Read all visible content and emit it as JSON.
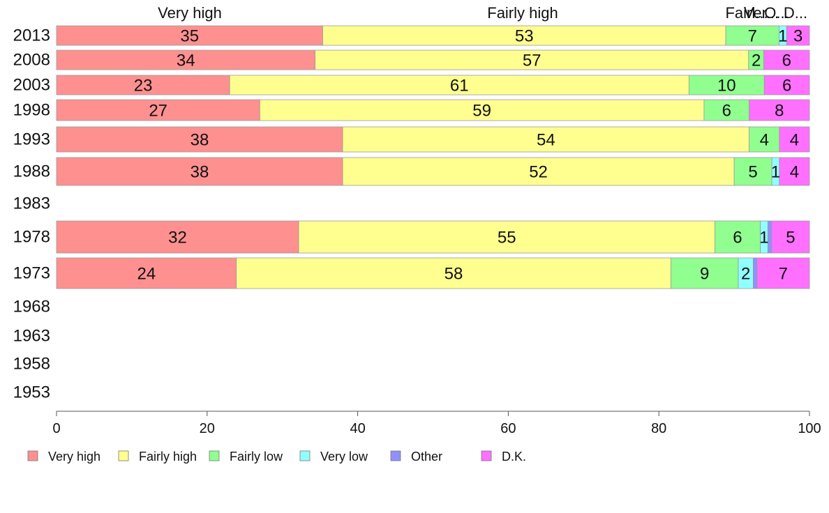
{
  "chart_data": {
    "type": "bar",
    "orientation": "horizontal",
    "stacked": true,
    "categories": [
      "2013",
      "2008",
      "2003",
      "1998",
      "1993",
      "1988",
      "1983",
      "1978",
      "1973",
      "1968",
      "1963",
      "1958",
      "1953"
    ],
    "series": [
      {
        "name": "Very high",
        "color": "#ff9090",
        "values": [
          35,
          34,
          23,
          27,
          38,
          38,
          null,
          32,
          24,
          null,
          null,
          null,
          null
        ]
      },
      {
        "name": "Fairly high",
        "color": "#ffff90",
        "values": [
          53,
          57,
          61,
          59,
          54,
          52,
          null,
          55,
          58,
          null,
          null,
          null,
          null
        ]
      },
      {
        "name": "Fairly low",
        "color": "#90ff90",
        "values": [
          7,
          2,
          10,
          6,
          4,
          5,
          null,
          6,
          9,
          null,
          null,
          null,
          null
        ]
      },
      {
        "name": "Very low",
        "color": "#90ffff",
        "values": [
          1,
          0,
          0,
          0,
          0,
          1,
          null,
          1,
          2,
          null,
          null,
          null,
          null
        ]
      },
      {
        "name": "Other",
        "color": "#9090ff",
        "values": [
          0,
          0,
          0,
          0,
          0,
          0,
          null,
          0.5,
          0.5,
          null,
          null,
          null,
          null
        ]
      },
      {
        "name": "D.K.",
        "color": "#ff70ff",
        "values": [
          3,
          6,
          6,
          8,
          4,
          4,
          null,
          5,
          7,
          null,
          null,
          null,
          null
        ]
      }
    ],
    "column_headers": [
      "Very high",
      "Fairly high",
      "Fairl...",
      "Ver...",
      "O...",
      "D..."
    ],
    "xticks": [
      0,
      20,
      40,
      60,
      80,
      100
    ],
    "xlim": [
      0,
      100
    ],
    "legend_position": "bottom",
    "grid": false
  }
}
